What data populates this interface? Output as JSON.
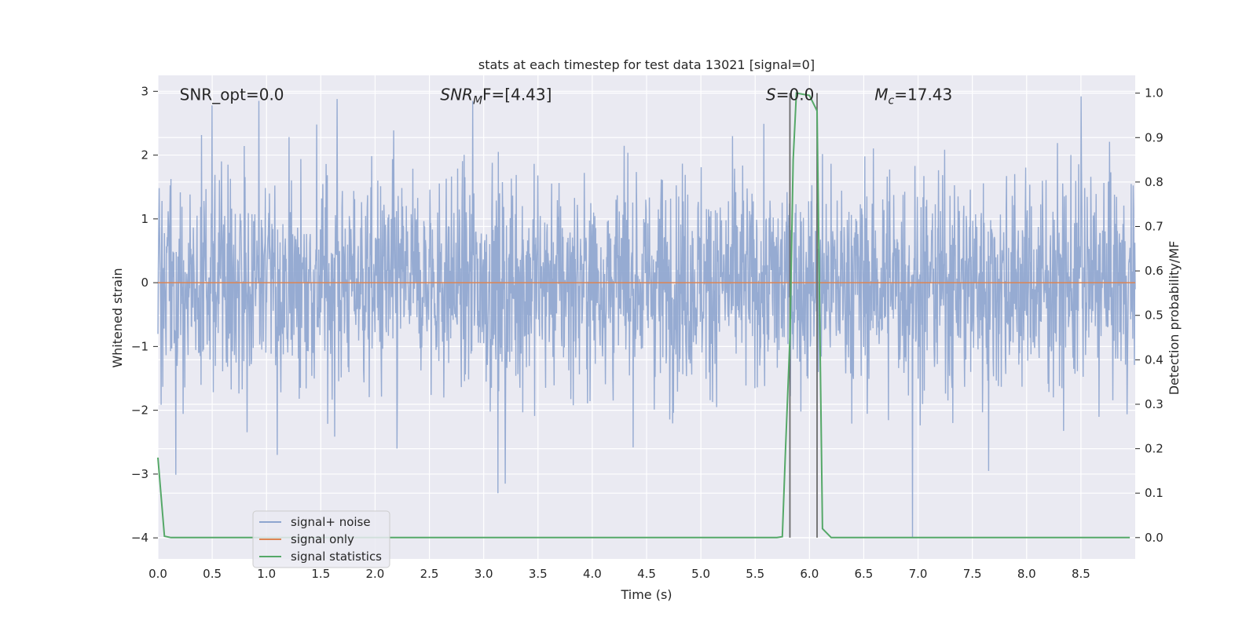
{
  "chart_data": {
    "type": "line",
    "title": "stats at each timestep for test data 13021 [signal=0]",
    "xlabel": "Time (s)",
    "ylabel_left": "Whitened strain",
    "ylabel_right": "Detection probability/MF",
    "xlim": [
      0.0,
      9.0
    ],
    "ylim_left": [
      -4.33,
      3.25
    ],
    "ylim_right": [
      -0.048,
      1.04
    ],
    "xticks": [
      "0.0",
      "0.5",
      "1.0",
      "1.5",
      "2.0",
      "2.5",
      "3.0",
      "3.5",
      "4.0",
      "4.5",
      "5.0",
      "5.5",
      "6.0",
      "6.5",
      "7.0",
      "7.5",
      "8.0",
      "8.5"
    ],
    "xtick_values": [
      0.0,
      0.5,
      1.0,
      1.5,
      2.0,
      2.5,
      3.0,
      3.5,
      4.0,
      4.5,
      5.0,
      5.5,
      6.0,
      6.5,
      7.0,
      7.5,
      8.0,
      8.5
    ],
    "yticks_left": [
      "3",
      "2",
      "1",
      "0",
      "−1",
      "−2",
      "−3",
      "−4"
    ],
    "ytick_values_left": [
      3,
      2,
      1,
      0,
      -1,
      -2,
      -3,
      -4
    ],
    "yticks_right": [
      "1.0",
      "0.9",
      "0.8",
      "0.7",
      "0.6",
      "0.5",
      "0.4",
      "0.3",
      "0.2",
      "0.1",
      "0.0"
    ],
    "ytick_values_right": [
      1.0,
      0.9,
      0.8,
      0.7,
      0.6,
      0.5,
      0.4,
      0.3,
      0.2,
      0.1,
      0.0
    ],
    "grid": true,
    "legend_position": "lower-left",
    "annotations": [
      {
        "text": "SNR_opt=0.0",
        "x": 0.2,
        "y": 2.95
      },
      {
        "text": "SNR",
        "sub": "M",
        "suffix": "F=[4.43]",
        "x": 2.6,
        "y": 2.95
      },
      {
        "text": "S",
        "suffix": "=0.0",
        "x": 5.6,
        "y": 2.95
      },
      {
        "text": "M",
        "sub": "c",
        "suffix": "=17.43",
        "x": 6.6,
        "y": 2.95
      }
    ],
    "vertical_lines": [
      5.82,
      6.07
    ],
    "series": [
      {
        "name": "signal+ noise",
        "color": "#8ea5cf",
        "envelope": {
          "t_start": 0.0,
          "t_end": 9.0,
          "typical_amplitude": 1.3,
          "max": 2.95,
          "min": -4.0
        },
        "notable_points": [
          {
            "x": 0.5,
            "y": 2.78
          },
          {
            "x": 0.93,
            "y": 2.85
          },
          {
            "x": 1.65,
            "y": 2.88
          },
          {
            "x": 2.9,
            "y": 2.85
          },
          {
            "x": 8.5,
            "y": 2.92
          },
          {
            "x": 3.13,
            "y": -3.3
          },
          {
            "x": 3.2,
            "y": -3.15
          },
          {
            "x": 6.95,
            "y": -4.0
          },
          {
            "x": 1.1,
            "y": -2.7
          },
          {
            "x": 2.2,
            "y": -2.6
          },
          {
            "x": 7.65,
            "y": -2.95
          }
        ]
      },
      {
        "name": "signal only",
        "color": "#dd8452",
        "x": [
          0.0,
          9.0
        ],
        "y": [
          0.0,
          0.0
        ]
      },
      {
        "name": "signal statistics",
        "color": "#55a868",
        "axis": "right",
        "x": [
          0.0,
          0.06,
          0.12,
          5.7,
          5.75,
          5.78,
          5.82,
          5.85,
          5.88,
          6.0,
          6.05,
          6.07,
          6.12,
          6.2,
          8.95
        ],
        "y": [
          0.18,
          0.003,
          0.0,
          0.0,
          0.002,
          0.2,
          0.45,
          0.85,
          1.0,
          0.995,
          0.97,
          0.96,
          0.02,
          0.0,
          0.0
        ]
      }
    ]
  }
}
